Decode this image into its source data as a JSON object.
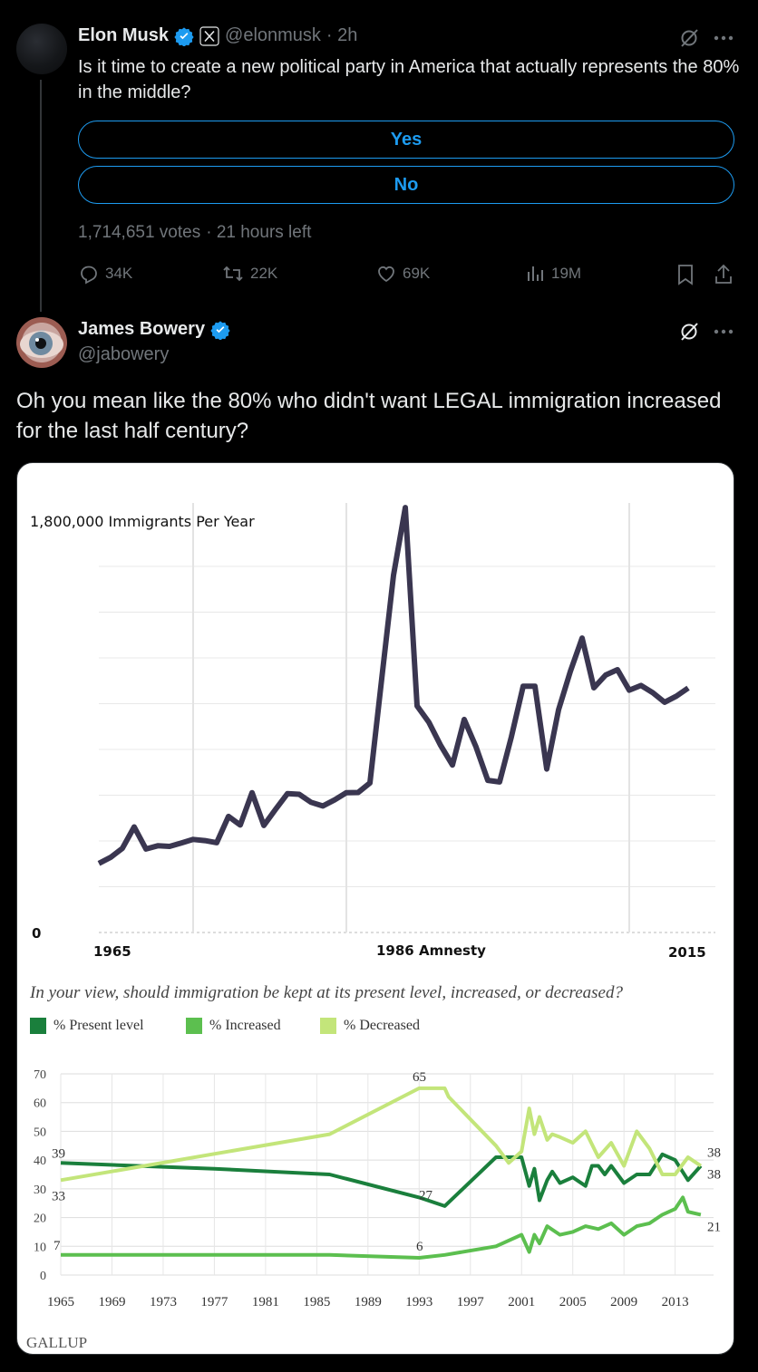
{
  "tweet1": {
    "name": "Elon Musk",
    "handle": "@elonmusk",
    "time": "· 2h",
    "text": "Is it time to create a new political party in America that actually represents the 80% in the middle?",
    "poll": {
      "options": [
        "Yes",
        "No"
      ],
      "votes": "1,714,651 votes",
      "time_left": "· 21 hours left"
    },
    "actions": {
      "replies": "34K",
      "reposts": "22K",
      "likes": "69K",
      "views": "19M"
    }
  },
  "tweet2": {
    "name": "James Bowery",
    "handle": "@jabowery",
    "text": "Oh you mean like the 80% who didn't want LEGAL immigration increased for the last half century?"
  },
  "colors": {
    "accent": "#1d9bf0",
    "line": "#3a3650",
    "present": "#1a7f3c",
    "increased": "#5cbf4f",
    "decreased": "#c3e57a"
  },
  "chart_data": [
    {
      "type": "line",
      "title": "1,800,000 Immigrants Per Year",
      "y_zero_label": "0",
      "tick_labels": [
        "1965",
        "1986 Amnesty",
        "2015"
      ],
      "ylim": [
        0,
        1800000
      ],
      "x": [
        1965,
        1966,
        1967,
        1968,
        1969,
        1970,
        1971,
        1972,
        1973,
        1974,
        1975,
        1976,
        1977,
        1978,
        1979,
        1980,
        1981,
        1982,
        1983,
        1984,
        1985,
        1986,
        1987,
        1988,
        1989,
        1990,
        1991,
        1992,
        1993,
        1994,
        1995,
        1996,
        1997,
        1998,
        1999,
        2000,
        2001,
        2002,
        2003,
        2004,
        2005,
        2006,
        2007,
        2008,
        2009,
        2010,
        2011,
        2012,
        2013,
        2014,
        2015
      ],
      "values": [
        297000,
        323000,
        362000,
        454000,
        359000,
        373000,
        370000,
        385000,
        400000,
        395000,
        386000,
        499000,
        462000,
        601000,
        460000,
        530000,
        597000,
        594000,
        560000,
        544000,
        570000,
        601000,
        602000,
        643000,
        1091000,
        1536000,
        1827000,
        974000,
        904000,
        804000,
        720000,
        916000,
        798000,
        654000,
        647000,
        841000,
        1059000,
        1059000,
        703000,
        957000,
        1122000,
        1266000,
        1052000,
        1107000,
        1130000,
        1042000,
        1062000,
        1031000,
        990000,
        1016000,
        1051000
      ]
    },
    {
      "type": "line",
      "question": "In your view, should immigration be kept at its present level, increased, or decreased?",
      "source": "GALLUP",
      "ylim": [
        0,
        70
      ],
      "yticks": [
        "0",
        "10",
        "20",
        "30",
        "40",
        "50",
        "60",
        "70"
      ],
      "xticks": [
        "1965",
        "1969",
        "1973",
        "1977",
        "1981",
        "1985",
        "1989",
        "1993",
        "1997",
        "2001",
        "2005",
        "2009",
        "2013"
      ],
      "series": [
        {
          "name": "% Present level",
          "x": [
            1965,
            1977,
            1986,
            1993,
            1995,
            1999,
            2001,
            2001.6,
            2002,
            2002.4,
            2003,
            2003.4,
            2004,
            2005,
            2006,
            2006.5,
            2007,
            2007.5,
            2008,
            2009,
            2010,
            2011,
            2012,
            2013,
            2014,
            2015
          ],
          "values": [
            39,
            37,
            35,
            27,
            24,
            41,
            41,
            31,
            37,
            26,
            33,
            36,
            32,
            34,
            31,
            38,
            38,
            35,
            38,
            32,
            35,
            35,
            42,
            40,
            33,
            38
          ],
          "start_label": "39",
          "mid_label": "27",
          "end_label": "38"
        },
        {
          "name": "% Increased",
          "x": [
            1965,
            1986,
            1993,
            1995,
            1999,
            2001,
            2001.6,
            2002,
            2002.4,
            2003,
            2004,
            2005,
            2006,
            2007,
            2008,
            2009,
            2010,
            2011,
            2012,
            2013,
            2013.6,
            2014,
            2015
          ],
          "values": [
            7,
            7,
            6,
            7,
            10,
            14,
            8,
            14,
            11,
            17,
            14,
            15,
            17,
            16,
            18,
            14,
            17,
            18,
            21,
            23,
            27,
            22,
            21
          ],
          "start_label": "7",
          "mid_label": "6",
          "end_label": "21"
        },
        {
          "name": "% Decreased",
          "x": [
            1965,
            1986,
            1993,
            1995,
            1995.3,
            1999,
            2000,
            2001,
            2001.6,
            2002,
            2002.4,
            2003,
            2003.4,
            2004,
            2005,
            2006,
            2007,
            2008,
            2009,
            2010,
            2011,
            2012,
            2013,
            2014,
            2015
          ],
          "values": [
            33,
            49,
            65,
            65,
            62,
            45,
            39,
            43,
            58,
            49,
            55,
            47,
            49,
            48,
            46,
            50,
            41,
            46,
            38,
            50,
            44,
            35,
            35,
            41,
            38
          ],
          "start_label": "33",
          "mid_label": "65",
          "end_label": "38"
        }
      ]
    }
  ]
}
